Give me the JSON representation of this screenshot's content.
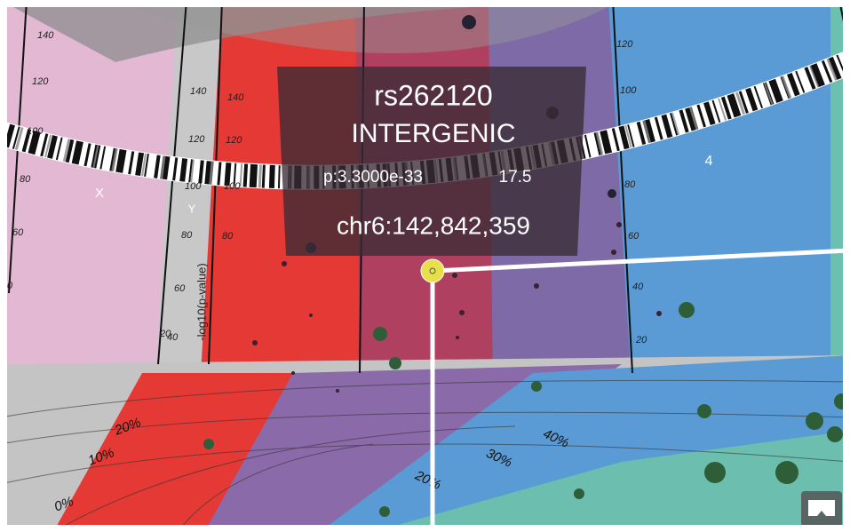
{
  "tooltip": {
    "rsid": "rs262120",
    "annotation": "INTERGENIC",
    "p_value": "p:3.3000e-33",
    "score": "17.5",
    "location": "chr6:142,842,359"
  },
  "axis_label": "-log10(p-value)",
  "chromosomes": [
    "X",
    "Y",
    "4"
  ],
  "left_ticks": [
    140,
    120,
    100,
    80,
    60,
    0
  ],
  "strip_ticks": [
    140,
    120,
    100,
    80,
    60,
    40,
    20
  ],
  "red_ticks": [
    140,
    120,
    100,
    80
  ],
  "right_ticks": [
    120,
    100,
    80,
    60,
    40,
    20
  ],
  "floor_ticks": [
    "0%",
    "10%",
    "20%",
    "20%",
    "30%",
    "40%"
  ]
}
